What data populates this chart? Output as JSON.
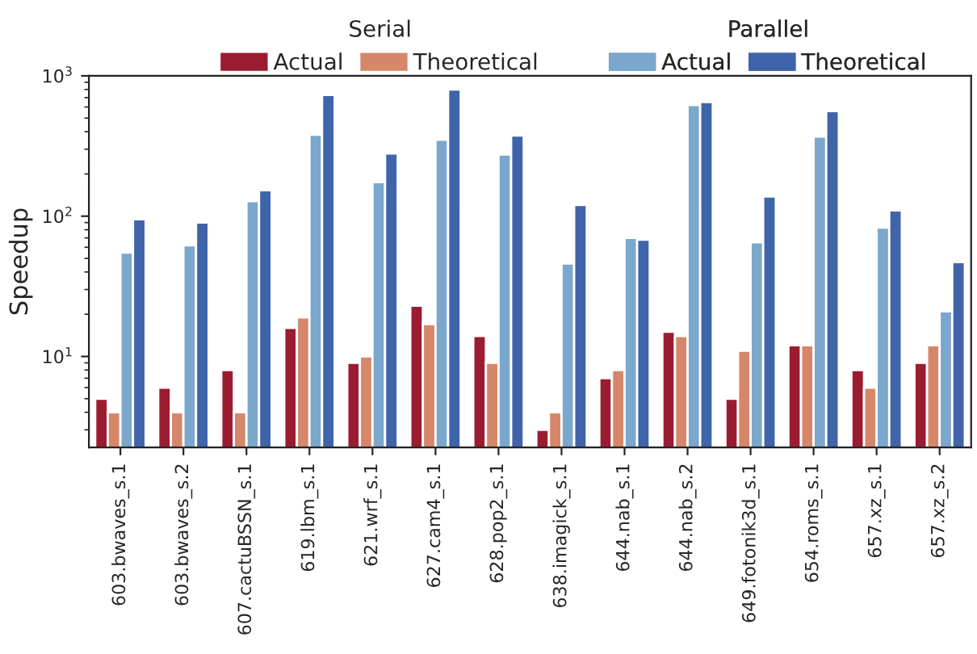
{
  "chart_data": {
    "type": "bar",
    "ylabel": "Speedup",
    "categories": [
      "603.bwaves_s.1",
      "603.bwaves_s.2",
      "607.cactuBSSN_s.1",
      "619.lbm_s.1",
      "621.wrf_s.1",
      "627.cam4_s.1",
      "628.pop2_s.1",
      "638.imagick_s.1",
      "644.nab_s.1",
      "644.nab_s.2",
      "649.fotonik3d_s.1",
      "654.roms_s.1",
      "657.xz_s.1",
      "657.xz_s.2"
    ],
    "legend_title": [
      "Serial",
      "Parallel"
    ],
    "series": [
      {
        "name": "Actual",
        "color": "#9b1c31",
        "values": [
          5,
          6,
          8,
          16,
          9,
          23,
          14,
          3,
          7,
          15,
          5,
          12,
          8,
          9
        ]
      },
      {
        "name": "Theoretical",
        "color": "#d6876a",
        "values": [
          4,
          4,
          4,
          19,
          10,
          17,
          9,
          4,
          8,
          14,
          11,
          12,
          6,
          12
        ]
      },
      {
        "name": "Actual",
        "color": "#7ba7cc",
        "values": [
          55,
          62,
          128,
          380,
          175,
          350,
          275,
          46,
          70,
          620,
          65,
          370,
          83,
          21
        ]
      },
      {
        "name": "Theoretical",
        "color": "#3f64a9",
        "values": [
          95,
          90,
          153,
          730,
          280,
          800,
          375,
          120,
          68,
          650,
          138,
          560,
          110,
          47
        ]
      }
    ],
    "log": "y",
    "ylim": [
      2.25,
      1000
    ],
    "yticks": [
      {
        "value": 10,
        "label": "10$^{1}$"
      },
      {
        "value": 100,
        "label": "10$^{2}$"
      },
      {
        "value": 1000,
        "label": "10$^{3}$"
      }
    ],
    "legend": "top",
    "grid": false
  }
}
